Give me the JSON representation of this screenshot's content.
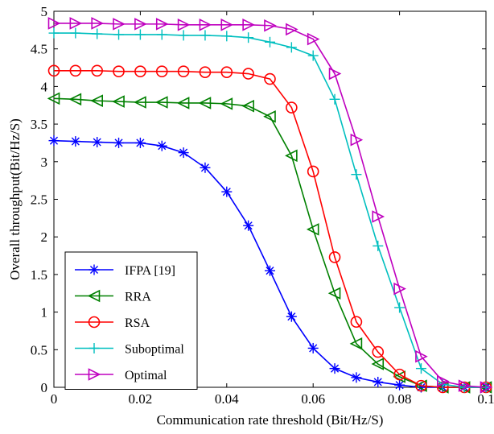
{
  "chart_data": {
    "type": "line",
    "title": "",
    "xlabel": "Communication rate threshold (Bit/Hz/S)",
    "ylabel": "Overall throughput(Bit/Hz/S)",
    "xlim": [
      0,
      0.1
    ],
    "ylim": [
      0,
      5
    ],
    "xticks": [
      0,
      0.02,
      0.04,
      0.06,
      0.08,
      0.1
    ],
    "xtick_labels": [
      "0",
      "0.02",
      "0.04",
      "0.06",
      "0.08",
      "0.1"
    ],
    "yticks": [
      0,
      0.5,
      1,
      1.5,
      2,
      2.5,
      3,
      3.5,
      4,
      4.5,
      5
    ],
    "ytick_labels": [
      "0",
      "0.5",
      "1",
      "1.5",
      "2",
      "2.5",
      "3",
      "3.5",
      "4",
      "4.5",
      "5"
    ],
    "grid": false,
    "legend_position": "bottom-left",
    "x": [
      0,
      0.005,
      0.01,
      0.015,
      0.02,
      0.025,
      0.03,
      0.035,
      0.04,
      0.045,
      0.05,
      0.055,
      0.06,
      0.065,
      0.07,
      0.075,
      0.08,
      0.085,
      0.09,
      0.095,
      0.1
    ],
    "series": [
      {
        "name": "IFPA [19]",
        "color": "#0000ff",
        "marker": "asterisk",
        "values": [
          3.28,
          3.27,
          3.26,
          3.25,
          3.25,
          3.21,
          3.12,
          2.92,
          2.6,
          2.15,
          1.55,
          0.94,
          0.52,
          0.25,
          0.13,
          0.07,
          0.03,
          0.0,
          0.0,
          0.0,
          0.0
        ]
      },
      {
        "name": "RRA",
        "color": "#008000",
        "marker": "triangle-left",
        "values": [
          3.84,
          3.83,
          3.81,
          3.8,
          3.79,
          3.79,
          3.78,
          3.78,
          3.77,
          3.74,
          3.6,
          3.08,
          2.1,
          1.25,
          0.58,
          0.31,
          0.14,
          0.02,
          0.0,
          0.0,
          0.0
        ]
      },
      {
        "name": "RSA",
        "color": "#ff0000",
        "marker": "circle",
        "values": [
          4.21,
          4.21,
          4.21,
          4.2,
          4.2,
          4.2,
          4.2,
          4.19,
          4.19,
          4.17,
          4.1,
          3.72,
          2.87,
          1.73,
          0.87,
          0.47,
          0.17,
          0.02,
          0.0,
          0.0,
          0.0
        ]
      },
      {
        "name": "Suboptimal",
        "color": "#00bfbf",
        "marker": "plus",
        "values": [
          4.71,
          4.71,
          4.7,
          4.69,
          4.69,
          4.69,
          4.68,
          4.68,
          4.67,
          4.65,
          4.59,
          4.52,
          4.41,
          3.83,
          2.83,
          1.88,
          1.06,
          0.25,
          0.04,
          0.0,
          0.0
        ]
      },
      {
        "name": "Optimal",
        "color": "#bf00bf",
        "marker": "triangle-right",
        "values": [
          4.84,
          4.84,
          4.84,
          4.83,
          4.83,
          4.83,
          4.82,
          4.82,
          4.82,
          4.82,
          4.81,
          4.76,
          4.63,
          4.17,
          3.29,
          2.27,
          1.31,
          0.41,
          0.08,
          0.02,
          0.0
        ]
      }
    ]
  }
}
